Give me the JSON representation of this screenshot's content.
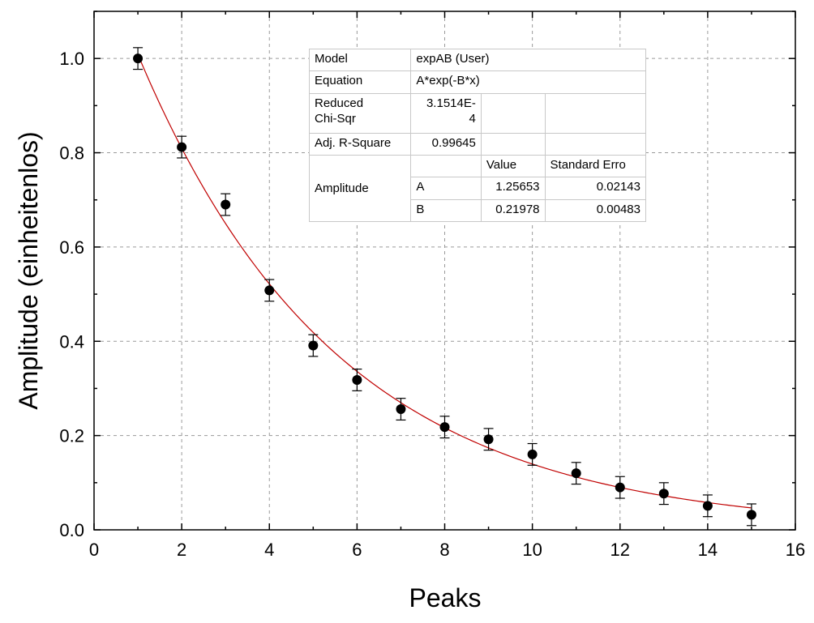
{
  "chart_data": {
    "type": "scatter",
    "xlabel": "Peaks",
    "ylabel": "Amplitude (einheitenlos)",
    "xlim": [
      0,
      16
    ],
    "ylim": [
      0.0,
      1.1
    ],
    "x_ticks": [
      "0",
      "2",
      "4",
      "6",
      "8",
      "10",
      "12",
      "14",
      "16"
    ],
    "y_ticks": [
      "0.0",
      "0.2",
      "0.4",
      "0.6",
      "0.8",
      "1.0"
    ],
    "grid": true,
    "series": [
      {
        "kind": "points_with_error_bars",
        "marker_color": "#000000",
        "x": [
          1,
          2,
          3,
          4,
          5,
          6,
          7,
          8,
          9,
          10,
          11,
          12,
          13,
          14,
          15
        ],
        "y": [
          1.0,
          0.812,
          0.69,
          0.508,
          0.391,
          0.318,
          0.256,
          0.218,
          0.192,
          0.16,
          0.12,
          0.09,
          0.077,
          0.051,
          0.032
        ],
        "error": [
          0.023,
          0.023,
          0.023,
          0.023,
          0.023,
          0.023,
          0.023,
          0.023,
          0.023,
          0.023,
          0.023,
          0.023,
          0.023,
          0.023,
          0.023
        ]
      },
      {
        "kind": "fit_curve",
        "color": "#c00000",
        "model": "A*exp(-B*x)",
        "A": 1.25653,
        "B": 0.21978,
        "x_range": [
          1,
          15
        ]
      }
    ],
    "fit_table": {
      "model_label": "Model",
      "model_value": "expAB (User)",
      "equation_label": "Equation",
      "equation_value": "A*exp(-B*x)",
      "chisq_label_line1": "Reduced",
      "chisq_label_line2": "Chi-Sqr",
      "chisq_value_line1": "3.1514E-",
      "chisq_value_line2": "4",
      "adjr2_label": "Adj. R-Square",
      "adjr2_value": "0.99645",
      "col_value": "Value",
      "col_stderr": "Standard Erro",
      "group_label": "Amplitude",
      "params": [
        {
          "name": "A",
          "value": "1.25653",
          "stderr": "0.02143"
        },
        {
          "name": "B",
          "value": "0.21978",
          "stderr": "0.00483"
        }
      ]
    }
  }
}
